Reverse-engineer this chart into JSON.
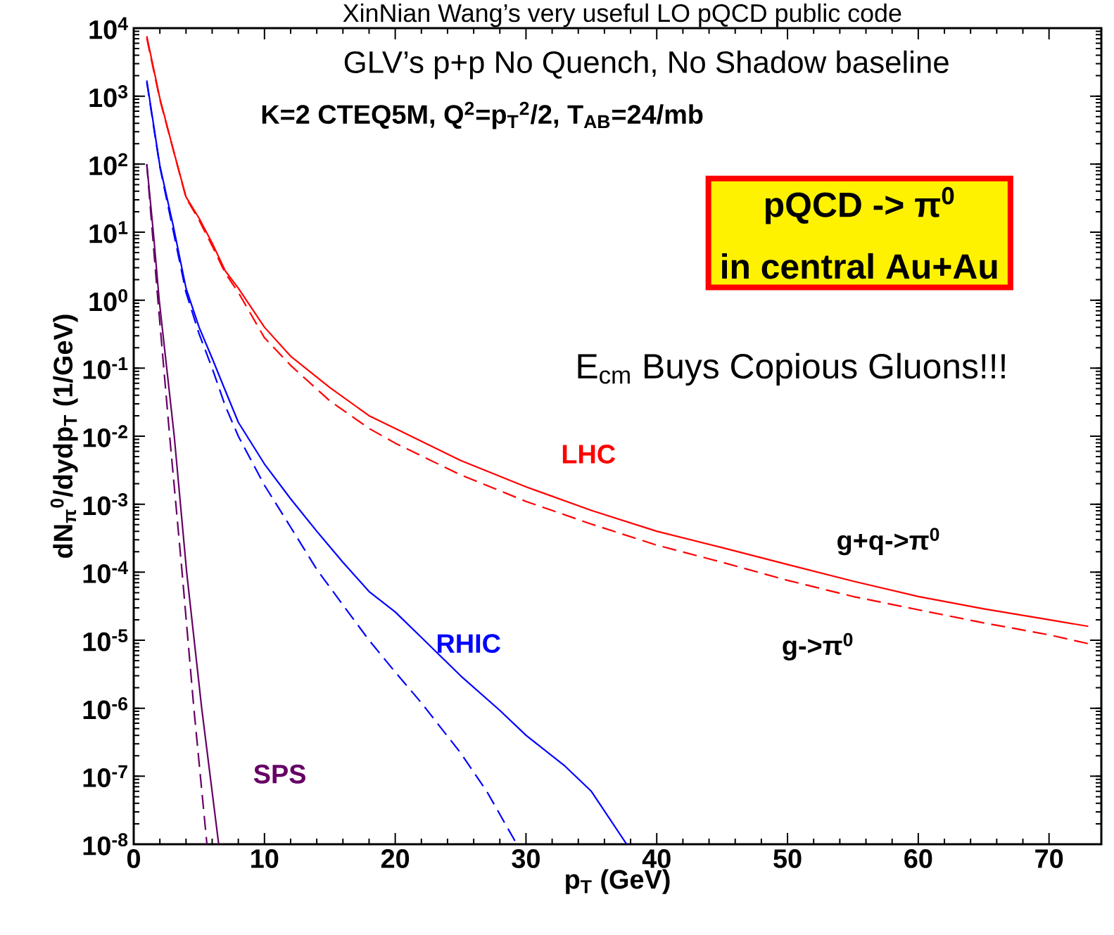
{
  "chart_data": {
    "type": "line",
    "title": "XinNian Wang’s very useful LO pQCD public code",
    "subtitle": "GLV’s  p+p No Quench, No Shadow baseline",
    "xlabel": "p$_{T}$ (GeV)",
    "ylabel": "dN$_{π}$$^{0}$/dydp$_{T}$ (1/GeV)",
    "log": "y",
    "grid": false,
    "marker": "none",
    "xlim": [
      0,
      74
    ],
    "ylim": [
      1e-08,
      10000
    ],
    "xticks": [
      0,
      10,
      20,
      30,
      40,
      50,
      60,
      70
    ],
    "yticks": [
      {
        "value": 1e-08,
        "label": "10$^{-8}$"
      },
      {
        "value": 1e-07,
        "label": "10$^{-7}$"
      },
      {
        "value": 1e-06,
        "label": "10$^{-6}$"
      },
      {
        "value": 1e-05,
        "label": "10$^{-5}$"
      },
      {
        "value": 0.0001,
        "label": "10$^{-4}$"
      },
      {
        "value": 0.001,
        "label": "10$^{-3}$"
      },
      {
        "value": 0.01,
        "label": "10$^{-2}$"
      },
      {
        "value": 0.1,
        "label": "10$^{-1}$"
      },
      {
        "value": 1,
        "label": "10$^{0}$"
      },
      {
        "value": 10,
        "label": "10$^{1}$"
      },
      {
        "value": 100,
        "label": "10$^{2}$"
      },
      {
        "value": 1000,
        "label": "10$^{3}$"
      },
      {
        "value": 10000,
        "label": "10$^{4}$"
      }
    ],
    "series": [
      {
        "color": "#ff0000",
        "line_style": "solid",
        "x": [
          1,
          2,
          3,
          4,
          5,
          6,
          7,
          8,
          10,
          12,
          15,
          18,
          20,
          25,
          30,
          35,
          40,
          45,
          50,
          55,
          60,
          65,
          70,
          73
        ],
        "values": [
          7600,
          930,
          170,
          33,
          16,
          6.9,
          2.7,
          1.5,
          0.4,
          0.15,
          0.052,
          0.02,
          0.013,
          0.0044,
          0.0018,
          0.00081,
          0.0004,
          0.00023,
          0.00013,
          7.4e-05,
          4.4e-05,
          2.9e-05,
          2e-05,
          1.6e-05
        ]
      },
      {
        "color": "#ff0000",
        "line_style": "dashed",
        "x": [
          1,
          2,
          3,
          4,
          5,
          6,
          7,
          8,
          10,
          12,
          15,
          18,
          20,
          25,
          30,
          35,
          40,
          45,
          50,
          55,
          60,
          65,
          70,
          73
        ],
        "values": [
          7100,
          890,
          170,
          32,
          15,
          6.3,
          2.5,
          1.3,
          0.28,
          0.11,
          0.033,
          0.013,
          0.0079,
          0.0027,
          0.0011,
          0.00051,
          0.00025,
          0.00014,
          7.6e-05,
          4.4e-05,
          2.8e-05,
          1.8e-05,
          1.2e-05,
          8.9e-06
        ]
      },
      {
        "color": "#0000ff",
        "line_style": "solid",
        "x": [
          1,
          2,
          3,
          4,
          5,
          6,
          7,
          8,
          10,
          12,
          14,
          16,
          18,
          20,
          22,
          25,
          28,
          30,
          33,
          35,
          37.7
        ],
        "values": [
          1700,
          95,
          13,
          1.5,
          0.4,
          0.14,
          0.047,
          0.016,
          0.0039,
          0.0012,
          0.0004,
          0.00014,
          5.2e-05,
          2.6e-05,
          1.1e-05,
          3e-06,
          9.3e-07,
          4e-07,
          1.4e-07,
          6e-08,
          1e-08
        ]
      },
      {
        "color": "#0000ff",
        "line_style": "dashed",
        "x": [
          1,
          2,
          3,
          4,
          5,
          6,
          7,
          8,
          10,
          12,
          14,
          16,
          18,
          20,
          22,
          25,
          27,
          29.3
        ],
        "values": [
          1600,
          91,
          11,
          1.3,
          0.32,
          0.1,
          0.028,
          0.01,
          0.0019,
          0.00046,
          0.00011,
          3.3e-05,
          1e-05,
          3.4e-06,
          1.2e-06,
          2.2e-07,
          6e-08,
          1e-08
        ]
      },
      {
        "color": "#660066",
        "line_style": "solid",
        "x": [
          1,
          1.5,
          1.95,
          3.1,
          4.05,
          5.2,
          6.5
        ],
        "values": [
          100,
          10,
          1,
          0.01,
          0.0001,
          1e-06,
          1e-08
        ]
      },
      {
        "color": "#660066",
        "line_style": "dashed",
        "x": [
          1,
          1.85,
          2.75,
          3.7,
          4.6,
          5.6
        ],
        "values": [
          100,
          1,
          0.01,
          0.0001,
          1e-06,
          1e-08
        ]
      }
    ],
    "annotations": [
      "K=2 CTEQ5M,  Q$^{2}$=p$_{T}$$^{2}$/2, T$_{AB}$=24/mb",
      "pQCD -> π$^{0}$",
      "in central Au+Au",
      "E$_{cm}$ Buys Copious Gluons!!!",
      "LHC",
      "RHIC",
      "SPS",
      "g+q->π$^{0}$",
      "g->π$^{0}$"
    ]
  }
}
